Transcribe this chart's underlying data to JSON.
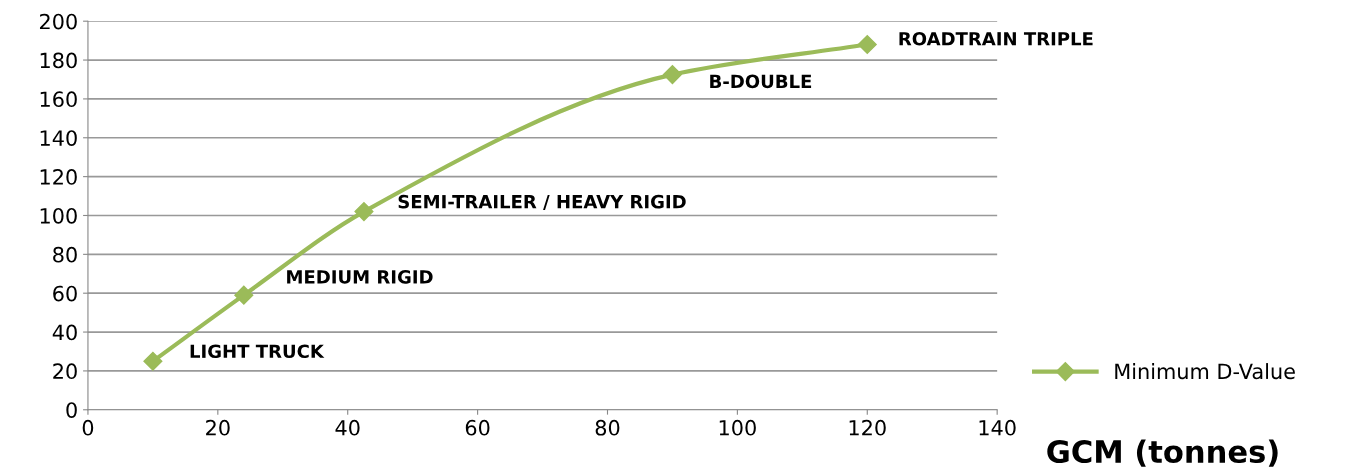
{
  "chart_data": {
    "type": "line",
    "xlabel": "GCM (tonnes)",
    "x": [
      10,
      24,
      42.5,
      90,
      120
    ],
    "series": [
      {
        "name": "Minimum D-Value",
        "color": "#9bbb59",
        "values": [
          25,
          59,
          102,
          172.5,
          188
        ]
      }
    ],
    "xlim": [
      0,
      140
    ],
    "xticks": [
      0,
      20,
      40,
      60,
      80,
      100,
      120,
      140
    ],
    "ylim": [
      0,
      200
    ],
    "yticks": [
      0,
      20,
      40,
      60,
      80,
      100,
      120,
      140,
      160,
      180,
      200
    ],
    "grid": "y",
    "legend": "bottom right",
    "marker": "diamond",
    "line_style": "solid",
    "annotations": [
      {
        "text": "LIGHT TRUCK",
        "x": 10,
        "y": 25
      },
      {
        "text": "MEDIUM RIGID",
        "x": 24,
        "y": 59
      },
      {
        "text": "SEMI-TRAILER / HEAVY RIGID",
        "x": 42.5,
        "y": 102
      },
      {
        "text": "B-DOUBLE",
        "x": 90,
        "y": 172.5
      },
      {
        "text": "ROADTRAIN TRIPLE",
        "x": 120,
        "y": 188
      }
    ]
  }
}
